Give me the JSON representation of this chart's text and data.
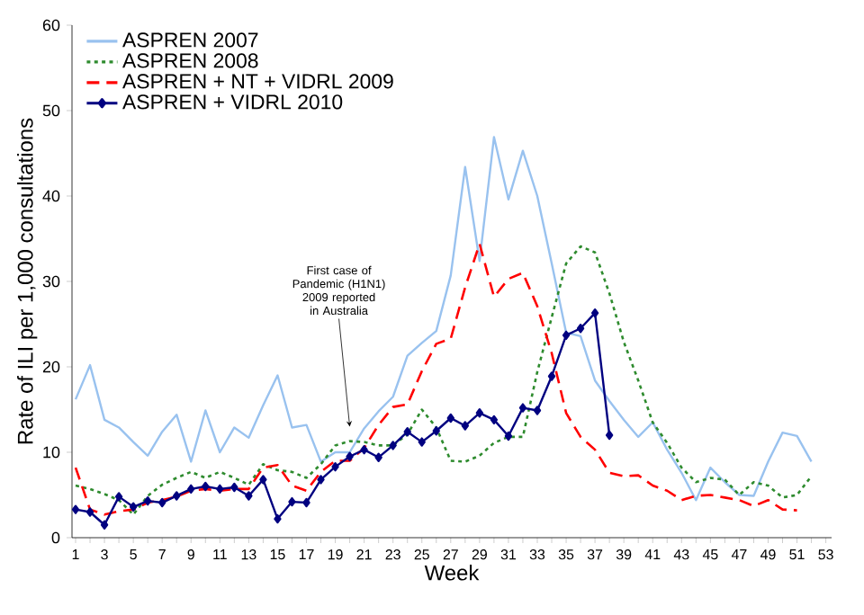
{
  "chart_data": {
    "type": "line",
    "xlabel": "Week",
    "ylabel": "Rate of ILI per 1,000 consultations",
    "x": [
      1,
      2,
      3,
      4,
      5,
      6,
      7,
      8,
      9,
      10,
      11,
      12,
      13,
      14,
      15,
      16,
      17,
      18,
      19,
      20,
      21,
      22,
      23,
      24,
      25,
      26,
      27,
      28,
      29,
      30,
      31,
      32,
      33,
      34,
      35,
      36,
      37,
      38,
      39,
      40,
      41,
      42,
      43,
      44,
      45,
      46,
      47,
      48,
      49,
      50,
      51,
      52
    ],
    "series": [
      {
        "name": "ASPREN 2007",
        "color": "#99c2ef",
        "line_style": "solid",
        "marker": "none",
        "values": [
          16.2,
          20.2,
          13.8,
          12.9,
          11.2,
          9.6,
          12.4,
          14.4,
          8.9,
          14.9,
          10.0,
          12.9,
          11.7,
          15.5,
          19.0,
          12.9,
          13.2,
          8.9,
          10.0,
          10.0,
          12.8,
          14.8,
          16.5,
          21.3,
          22.8,
          24.2,
          30.7,
          43.4,
          32.4,
          46.9,
          39.6,
          45.3,
          40.0,
          32.1,
          24.0,
          23.6,
          18.4,
          16.0,
          13.8,
          11.8,
          13.5,
          10.3,
          7.6,
          4.4,
          8.2,
          6.5,
          5.0,
          4.9,
          8.9,
          12.3,
          11.9,
          8.9
        ]
      },
      {
        "name": "ASPREN 2008",
        "color": "#2e8b2e",
        "line_style": "dotted",
        "marker": "none",
        "values": [
          6.1,
          5.7,
          5.1,
          4.4,
          2.7,
          4.9,
          6.2,
          7.0,
          7.7,
          7.0,
          7.7,
          7.0,
          6.2,
          8.6,
          7.9,
          7.7,
          7.0,
          8.6,
          10.8,
          11.3,
          11.2,
          10.8,
          10.8,
          12.1,
          15.0,
          12.9,
          9.0,
          8.9,
          9.6,
          11.1,
          11.8,
          11.8,
          19.4,
          25.8,
          32.1,
          34.1,
          33.4,
          28.6,
          22.9,
          18.4,
          13.5,
          11.1,
          8.2,
          6.5,
          7.0,
          6.8,
          5.0,
          6.5,
          6.1,
          4.7,
          5.0,
          7.2
        ]
      },
      {
        "name": "ASPREN + NT + VIDRL 2009",
        "color": "#ff0000",
        "line_style": "dashed",
        "marker": "none",
        "values": [
          8.2,
          3.3,
          2.7,
          3.1,
          3.3,
          4.1,
          4.4,
          4.8,
          5.5,
          5.7,
          5.5,
          5.7,
          5.7,
          8.2,
          8.5,
          6.1,
          5.5,
          7.7,
          9.0,
          9.0,
          10.5,
          13.2,
          15.3,
          15.6,
          19.5,
          22.7,
          23.3,
          29.3,
          34.4,
          28.2,
          30.3,
          31.0,
          27.1,
          21.6,
          14.6,
          11.8,
          10.3,
          7.6,
          7.2,
          7.3,
          6.1,
          5.5,
          4.4,
          4.9,
          5.0,
          4.7,
          4.4,
          3.7,
          4.4,
          3.3,
          3.2,
          null
        ]
      },
      {
        "name": "ASPREN + VIDRL 2010",
        "color": "#000080",
        "line_style": "solid",
        "marker": "diamond",
        "values": [
          3.3,
          3.0,
          1.5,
          4.8,
          3.6,
          4.3,
          4.1,
          4.9,
          5.7,
          6.0,
          5.7,
          5.9,
          4.9,
          6.8,
          2.2,
          4.2,
          4.1,
          6.8,
          8.3,
          9.5,
          10.3,
          9.4,
          10.8,
          12.4,
          11.2,
          12.5,
          14.0,
          13.1,
          14.6,
          13.8,
          11.9,
          15.2,
          14.9,
          18.9,
          23.7,
          24.5,
          26.3,
          12.0,
          null,
          null,
          null,
          null,
          null,
          null,
          null,
          null,
          null,
          null,
          null,
          null,
          null,
          null
        ]
      }
    ],
    "xlim": [
      0.75,
      53.4
    ],
    "xticks": [
      1,
      {
        "value": 2,
        "label": null
      },
      3,
      {
        "value": 4,
        "label": null
      },
      5,
      {
        "value": 6,
        "label": null
      },
      7,
      {
        "value": 8,
        "label": null
      },
      9,
      {
        "value": 10,
        "label": null
      },
      11,
      {
        "value": 12,
        "label": null
      },
      13,
      {
        "value": 14,
        "label": null
      },
      15,
      {
        "value": 16,
        "label": null
      },
      17,
      {
        "value": 18,
        "label": null
      },
      19,
      {
        "value": 20,
        "label": null
      },
      21,
      {
        "value": 22,
        "label": null
      },
      23,
      {
        "value": 24,
        "label": null
      },
      25,
      {
        "value": 26,
        "label": null
      },
      27,
      {
        "value": 28,
        "label": null
      },
      29,
      {
        "value": 30,
        "label": null
      },
      31,
      {
        "value": 32,
        "label": null
      },
      33,
      {
        "value": 34,
        "label": null
      },
      35,
      {
        "value": 36,
        "label": null
      },
      37,
      {
        "value": 38,
        "label": null
      },
      39,
      {
        "value": 40,
        "label": null
      },
      41,
      {
        "value": 42,
        "label": null
      },
      43,
      {
        "value": 44,
        "label": null
      },
      45,
      {
        "value": 46,
        "label": null
      },
      47,
      {
        "value": 48,
        "label": null
      },
      49,
      {
        "value": 50,
        "label": null
      },
      51,
      {
        "value": 52,
        "label": null
      },
      53
    ],
    "ylim": [
      0,
      60
    ],
    "yticks": [
      0,
      10,
      20,
      30,
      40,
      50,
      60
    ],
    "grid": false,
    "legend": "top left",
    "annotations": [
      {
        "text": "First case of Pandemic (H1N1) 2009 reported in Australia",
        "x": 20,
        "y": 13
      }
    ]
  }
}
